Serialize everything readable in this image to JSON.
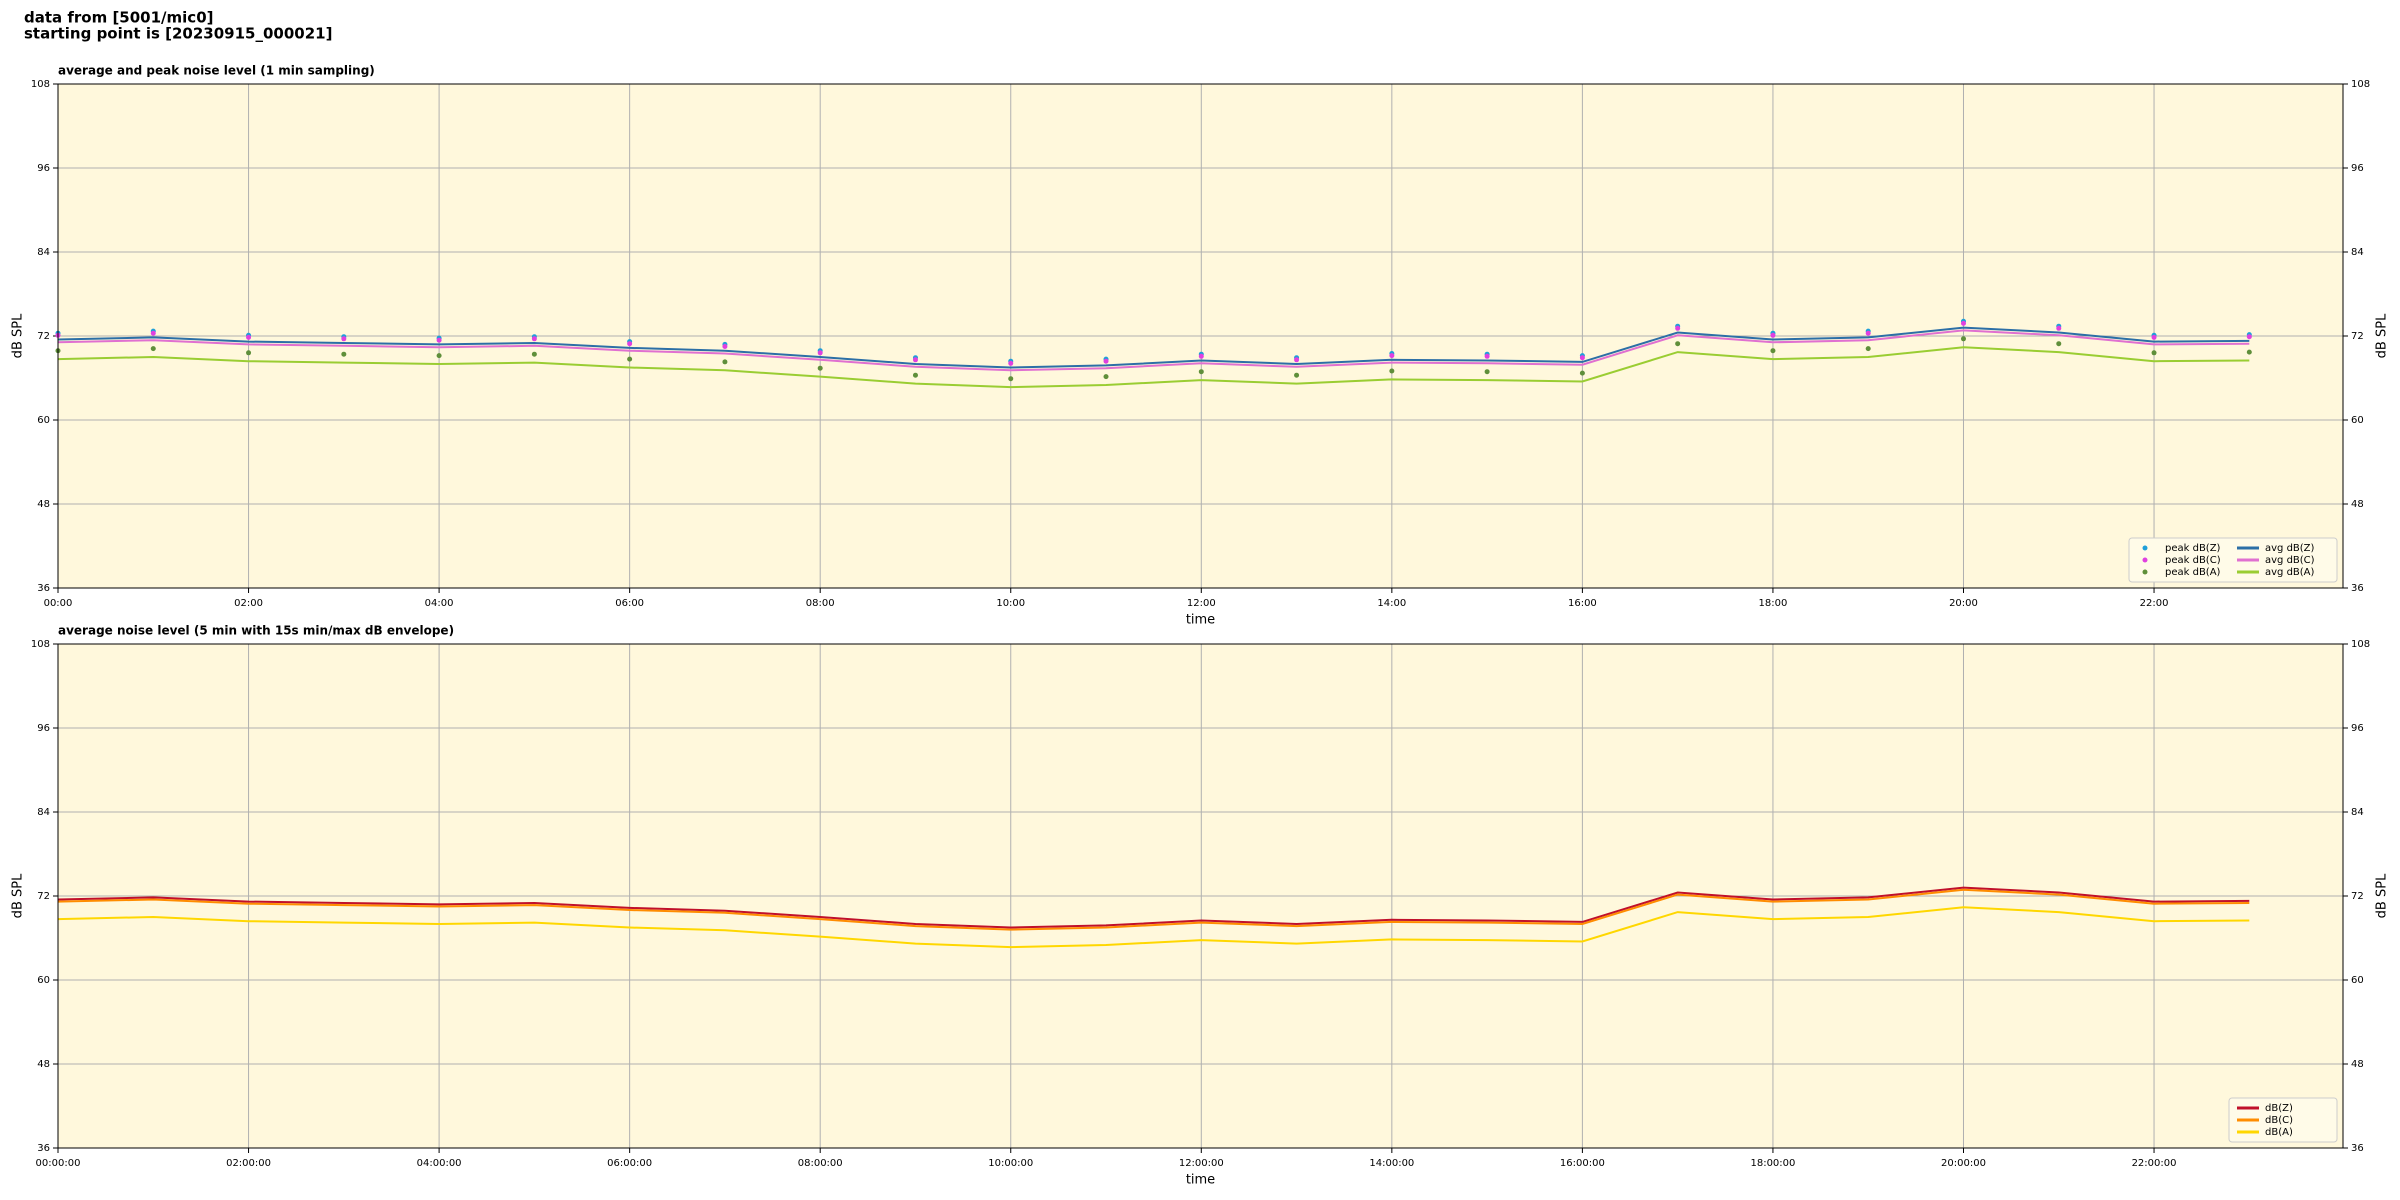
{
  "header": [
    "data from [5001/mic0]",
    "starting point is [20230915_000021]"
  ],
  "chart_data": [
    {
      "type": "line",
      "title": "average and peak noise level (1 min sampling)",
      "x_label": "time",
      "y_label": "dB SPL",
      "x": [
        "00:00",
        "01:00",
        "02:00",
        "03:00",
        "04:00",
        "05:00",
        "06:00",
        "07:00",
        "08:00",
        "09:00",
        "10:00",
        "11:00",
        "12:00",
        "13:00",
        "14:00",
        "15:00",
        "16:00",
        "17:00",
        "18:00",
        "19:00",
        "20:00",
        "21:00",
        "22:00",
        "23:00"
      ],
      "xlim": [
        "00:00",
        "23:59"
      ],
      "xticks": [
        "00:00",
        "02:00",
        "04:00",
        "06:00",
        "08:00",
        "10:00",
        "12:00",
        "14:00",
        "16:00",
        "18:00",
        "20:00",
        "22:00"
      ],
      "ylim": [
        36,
        108
      ],
      "yticks": [
        36,
        48,
        60,
        72,
        84,
        96,
        108
      ],
      "grid": true,
      "legend": "lower right",
      "background": "#fff8dc",
      "series": [
        {
          "name": "peak dB(Z)",
          "kind": "scatter",
          "color": "#1f9fd9",
          "values": [
            72.4,
            72.7,
            72.1,
            71.9,
            71.7,
            71.9,
            71.2,
            70.8,
            69.9,
            68.9,
            68.4,
            68.7,
            69.4,
            68.9,
            69.5,
            69.4,
            69.2,
            73.4,
            72.4,
            72.7,
            74.1,
            73.4,
            72.1,
            72.2
          ]
        },
        {
          "name": "peak dB(C)",
          "kind": "scatter",
          "color": "#e040e0",
          "values": [
            72.1,
            72.4,
            71.8,
            71.6,
            71.4,
            71.6,
            70.9,
            70.5,
            69.6,
            68.6,
            68.1,
            68.4,
            69.1,
            68.6,
            69.2,
            69.1,
            68.9,
            73.1,
            72.1,
            72.4,
            73.8,
            73.1,
            71.8,
            71.9
          ]
        },
        {
          "name": "peak dB(A)",
          "kind": "scatter",
          "color": "#5f8f3a",
          "values": [
            69.9,
            70.2,
            69.6,
            69.4,
            69.2,
            69.4,
            68.7,
            68.3,
            67.4,
            66.4,
            65.9,
            66.2,
            66.9,
            66.4,
            67.0,
            66.9,
            66.7,
            70.9,
            69.9,
            70.2,
            71.6,
            70.9,
            69.6,
            69.7
          ]
        },
        {
          "name": "avg dB(Z)",
          "kind": "line",
          "color": "#2c6fa6",
          "values": [
            71.5,
            71.8,
            71.2,
            71.0,
            70.8,
            71.0,
            70.3,
            69.9,
            69.0,
            68.0,
            67.5,
            67.8,
            68.5,
            68.0,
            68.6,
            68.5,
            68.3,
            72.5,
            71.5,
            71.8,
            73.2,
            72.5,
            71.2,
            71.3
          ]
        },
        {
          "name": "avg dB(C)",
          "kind": "line",
          "color": "#e070d0",
          "values": [
            71.1,
            71.4,
            70.8,
            70.6,
            70.4,
            70.6,
            69.9,
            69.5,
            68.6,
            67.6,
            67.1,
            67.4,
            68.1,
            67.6,
            68.2,
            68.1,
            67.9,
            72.1,
            71.1,
            71.4,
            72.8,
            72.1,
            70.8,
            70.9
          ]
        },
        {
          "name": "avg dB(A)",
          "kind": "line",
          "color": "#9acd32",
          "values": [
            68.7,
            69.0,
            68.4,
            68.2,
            68.0,
            68.2,
            67.5,
            67.1,
            66.2,
            65.2,
            64.7,
            65.0,
            65.7,
            65.2,
            65.8,
            65.7,
            65.5,
            69.7,
            68.7,
            69.0,
            70.4,
            69.7,
            68.4,
            68.5
          ]
        }
      ]
    },
    {
      "type": "line",
      "title": "average noise level (5 min with 15s min/max dB envelope)",
      "x_label": "time",
      "y_label": "dB SPL",
      "x": [
        "00:00:00",
        "01:00:00",
        "02:00:00",
        "03:00:00",
        "04:00:00",
        "05:00:00",
        "06:00:00",
        "07:00:00",
        "08:00:00",
        "09:00:00",
        "10:00:00",
        "11:00:00",
        "12:00:00",
        "13:00:00",
        "14:00:00",
        "15:00:00",
        "16:00:00",
        "17:00:00",
        "18:00:00",
        "19:00:00",
        "20:00:00",
        "21:00:00",
        "22:00:00",
        "23:00:00"
      ],
      "xlim": [
        "00:00:00",
        "23:59:00"
      ],
      "xticks": [
        "00:00:00",
        "02:00:00",
        "04:00:00",
        "06:00:00",
        "08:00:00",
        "10:00:00",
        "12:00:00",
        "14:00:00",
        "16:00:00",
        "18:00:00",
        "20:00:00",
        "22:00:00"
      ],
      "ylim": [
        36,
        108
      ],
      "yticks": [
        36,
        48,
        60,
        72,
        84,
        96,
        108
      ],
      "grid": true,
      "legend": "lower right",
      "background": "#fff8dc",
      "series": [
        {
          "name": "dB(Z)",
          "kind": "line",
          "color": "#c0102a",
          "values": [
            71.5,
            71.8,
            71.2,
            71.0,
            70.8,
            71.0,
            70.3,
            69.9,
            69.0,
            68.0,
            67.5,
            67.8,
            68.5,
            68.0,
            68.6,
            68.5,
            68.3,
            72.5,
            71.5,
            71.8,
            73.2,
            72.5,
            71.2,
            71.3
          ]
        },
        {
          "name": "dB(C)",
          "kind": "line",
          "color": "#ff8c00",
          "values": [
            71.2,
            71.5,
            70.9,
            70.7,
            70.5,
            70.7,
            70.0,
            69.6,
            68.7,
            67.7,
            67.2,
            67.5,
            68.2,
            67.7,
            68.3,
            68.2,
            68.0,
            72.2,
            71.2,
            71.5,
            72.9,
            72.2,
            70.9,
            71.0
          ]
        },
        {
          "name": "dB(A)",
          "kind": "line",
          "color": "#ffd700",
          "values": [
            68.7,
            69.0,
            68.4,
            68.2,
            68.0,
            68.2,
            67.5,
            67.1,
            66.2,
            65.2,
            64.7,
            65.0,
            65.7,
            65.2,
            65.8,
            65.7,
            65.5,
            69.7,
            68.7,
            69.0,
            70.4,
            69.7,
            68.4,
            68.5
          ]
        }
      ]
    }
  ]
}
